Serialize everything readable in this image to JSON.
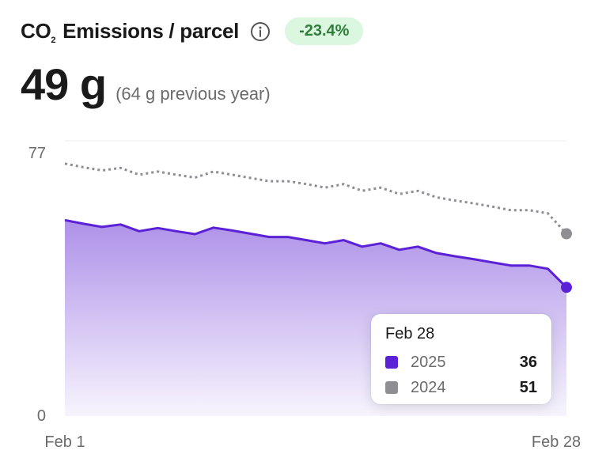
{
  "header": {
    "title_prefix": "CO",
    "title_subscript": "2",
    "title_suffix": " Emissions / parcel",
    "info_icon": "info-icon",
    "change_badge": "-23.4%",
    "badge_color": "#2f7d3a",
    "badge_bg": "#dcf7df"
  },
  "metric": {
    "value": "49 g",
    "previous": "(64 g previous year)"
  },
  "tooltip": {
    "date": "Feb 28",
    "rows": [
      {
        "name": "2025",
        "value": "36",
        "color": "#5b21d6"
      },
      {
        "name": "2024",
        "value": "51",
        "color": "#8e8e93"
      }
    ]
  },
  "chart_data": {
    "type": "area",
    "title": "",
    "xlabel": "",
    "ylabel": "",
    "x_tick_labels": [
      "Feb 1",
      "Feb 28"
    ],
    "y_tick_labels": [
      "77",
      "0"
    ],
    "ylim": [
      0,
      77
    ],
    "x": [
      1,
      2,
      3,
      4,
      5,
      6,
      7,
      8,
      9,
      10,
      11,
      12,
      13,
      14,
      15,
      16,
      17,
      18,
      19,
      20,
      21,
      22,
      23,
      24,
      25,
      26,
      27,
      28
    ],
    "series": [
      {
        "name": "2025",
        "color": "#5b21d6",
        "style": "solid-area",
        "values": [
          54.8,
          53.8,
          52.9,
          53.6,
          51.7,
          52.6,
          51.7,
          50.9,
          52.7,
          51.9,
          51.0,
          50.1,
          50.1,
          49.2,
          48.3,
          49.2,
          47.4,
          48.3,
          46.5,
          47.4,
          45.6,
          44.7,
          43.9,
          43.0,
          42.1,
          42.1,
          41.2,
          36.0
        ]
      },
      {
        "name": "2024",
        "color": "#8e8e93",
        "style": "dotted-line",
        "values": [
          70.6,
          69.6,
          68.7,
          69.4,
          67.5,
          68.4,
          67.5,
          66.7,
          68.4,
          67.5,
          66.6,
          65.7,
          65.7,
          64.9,
          63.9,
          64.9,
          63.0,
          63.9,
          62.1,
          63.0,
          61.2,
          60.3,
          59.5,
          58.6,
          57.6,
          57.6,
          56.7,
          51.0
        ]
      }
    ],
    "grid": "top-line-only",
    "legend": "tooltip"
  }
}
